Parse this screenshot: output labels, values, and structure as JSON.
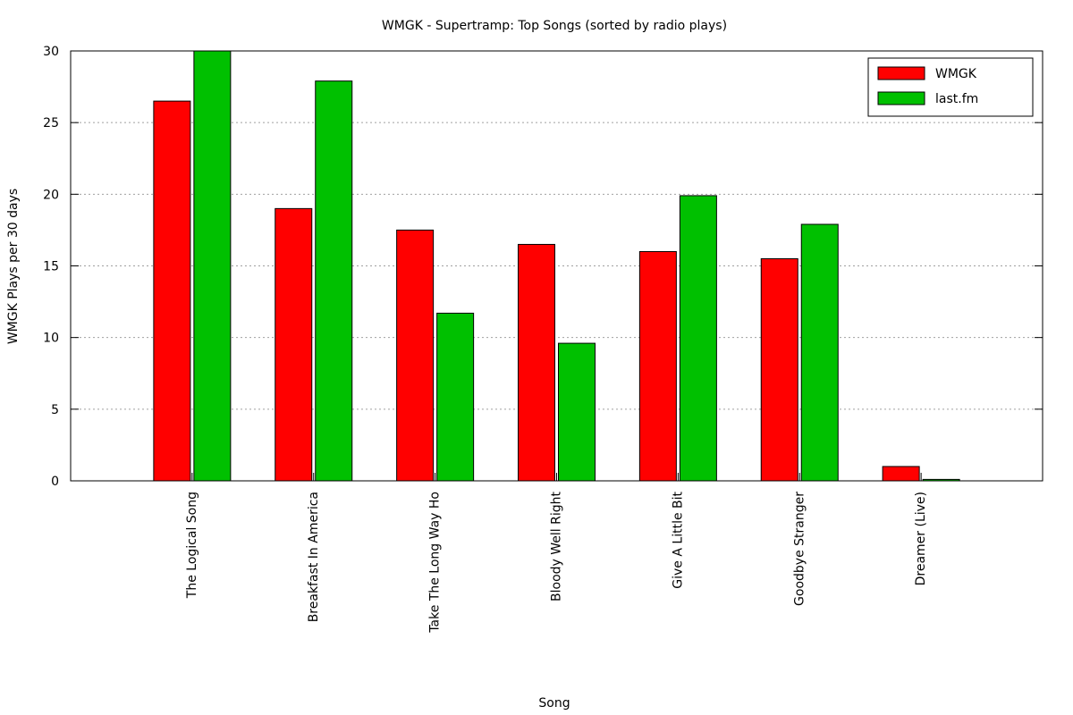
{
  "chart_data": {
    "type": "bar",
    "title": "WMGK - Supertramp: Top Songs (sorted by radio plays)",
    "xlabel": "Song",
    "ylabel": "WMGK Plays per 30 days",
    "ylim": [
      0,
      30
    ],
    "yticks": [
      "0",
      "5",
      "10",
      "15",
      "20",
      "25",
      "30"
    ],
    "grid": true,
    "legend_position": "top-right",
    "categories": [
      "The Logical Song",
      "Breakfast In America",
      "Take The Long Way Ho",
      "Bloody Well Right",
      "Give A Little Bit",
      "Goodbye Stranger",
      "Dreamer (Live)"
    ],
    "series": [
      {
        "name": "WMGK",
        "color": "#ff0000",
        "values": [
          26.5,
          19,
          17.5,
          16.5,
          16,
          15.5,
          1
        ]
      },
      {
        "name": "last.fm",
        "color": "#00c000",
        "values": [
          30,
          27.9,
          11.7,
          9.6,
          19.9,
          17.9,
          0.1
        ]
      }
    ]
  }
}
